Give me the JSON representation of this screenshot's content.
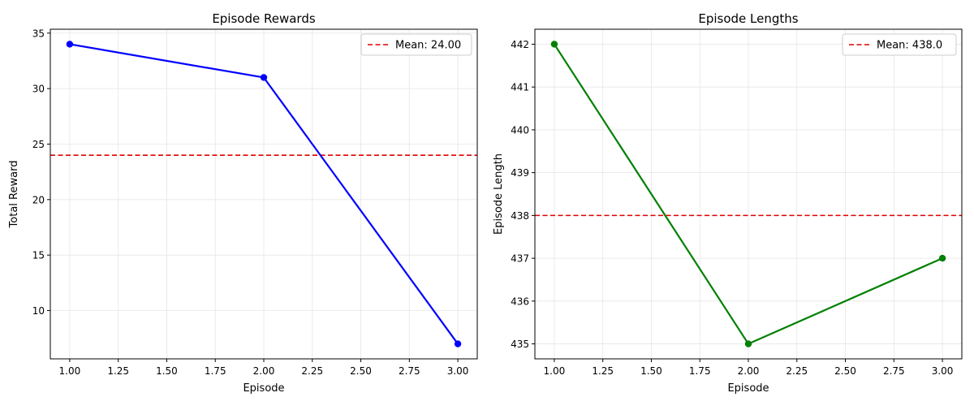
{
  "chart_data": [
    {
      "type": "line",
      "title": "Episode Rewards",
      "xlabel": "Episode",
      "ylabel": "Total Reward",
      "xlim": [
        0.9,
        3.1
      ],
      "ylim": [
        5.65,
        35.35
      ],
      "x_ticks": [
        1.0,
        1.25,
        1.5,
        1.75,
        2.0,
        2.25,
        2.5,
        2.75,
        3.0
      ],
      "x_tick_labels": [
        "1.00",
        "1.25",
        "1.50",
        "1.75",
        "2.00",
        "2.25",
        "2.50",
        "2.75",
        "3.00"
      ],
      "y_ticks": [
        10,
        15,
        20,
        25,
        30,
        35
      ],
      "y_tick_labels": [
        "10",
        "15",
        "20",
        "25",
        "30",
        "35"
      ],
      "grid": true,
      "legend_position": "top-right",
      "series": [
        {
          "x": [
            1,
            2,
            3
          ],
          "values": [
            34,
            31,
            7
          ],
          "color": "#0000ff",
          "marker": "circle"
        }
      ],
      "reference_lines": [
        {
          "y": 24.0,
          "label": "Mean: 24.00",
          "color": "#e00000",
          "style": "dashed"
        }
      ]
    },
    {
      "type": "line",
      "title": "Episode Lengths",
      "xlabel": "Episode",
      "ylabel": "Episode Length",
      "xlim": [
        0.9,
        3.1
      ],
      "ylim": [
        434.65,
        442.35
      ],
      "x_ticks": [
        1.0,
        1.25,
        1.5,
        1.75,
        2.0,
        2.25,
        2.5,
        2.75,
        3.0
      ],
      "x_tick_labels": [
        "1.00",
        "1.25",
        "1.50",
        "1.75",
        "2.00",
        "2.25",
        "2.50",
        "2.75",
        "3.00"
      ],
      "y_ticks": [
        435,
        436,
        437,
        438,
        439,
        440,
        441,
        442
      ],
      "y_tick_labels": [
        "435",
        "436",
        "437",
        "438",
        "439",
        "440",
        "441",
        "442"
      ],
      "grid": true,
      "legend_position": "top-right",
      "series": [
        {
          "x": [
            1,
            2,
            3
          ],
          "values": [
            442,
            435,
            437
          ],
          "color": "#008000",
          "marker": "circle"
        }
      ],
      "reference_lines": [
        {
          "y": 438.0,
          "label": "Mean: 438.0",
          "color": "#e00000",
          "style": "dashed"
        }
      ]
    }
  ]
}
